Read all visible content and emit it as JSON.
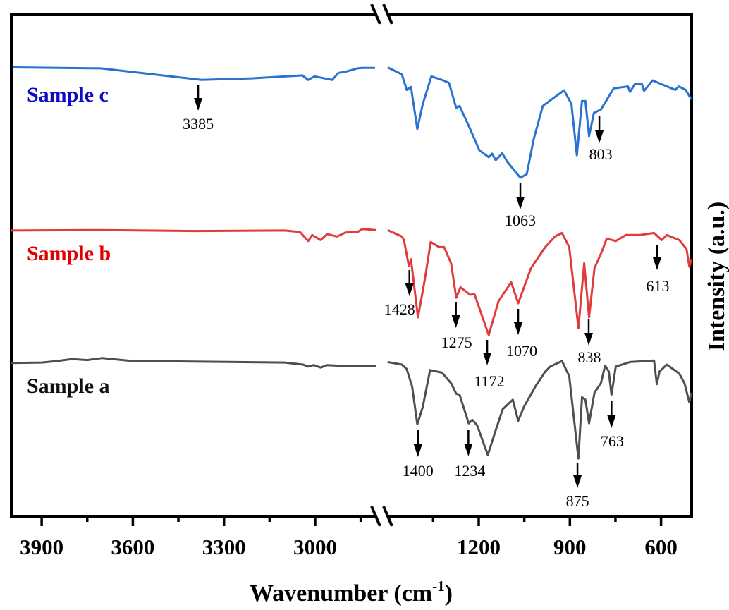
{
  "chart_data": {
    "type": "line",
    "title": "",
    "xlabel": "Wavenumber (cm",
    "xlabel_sup": "-1",
    "xlabel_close": ")",
    "ylabel": "Intensity (a.u.)",
    "x_axis": {
      "broken": true,
      "segments": [
        [
          4000,
          2800
        ],
        [
          1500,
          500
        ]
      ],
      "reversed": true,
      "ticks": [
        3900,
        3600,
        3300,
        3000,
        1200,
        900,
        600
      ],
      "tick_labels": [
        "3900",
        "3600",
        "3300",
        "3000",
        "1200",
        "900",
        "600"
      ],
      "minor_ticks": [
        3750,
        3450,
        3150,
        2850,
        1350,
        1050,
        750
      ]
    },
    "y_axis": {
      "ticks": "none",
      "ylim": [
        0,
        100
      ]
    },
    "grid": false,
    "series": [
      {
        "name": "Sample c",
        "color": "#2a72cf",
        "label_color": "#0b0bc8",
        "left": [
          [
            3995,
            89.4
          ],
          [
            3705,
            89.2
          ],
          [
            3374,
            86.9
          ],
          [
            3209,
            87.2
          ],
          [
            3042,
            87.8
          ],
          [
            3023,
            86.9
          ],
          [
            3002,
            87.6
          ],
          [
            2944,
            86.9
          ],
          [
            2923,
            88.3
          ],
          [
            2902,
            88.5
          ],
          [
            2861,
            89.2
          ],
          [
            2845,
            89.3
          ],
          [
            2803,
            89.3
          ]
        ],
        "right": [
          [
            1500,
            89.4
          ],
          [
            1453,
            88.0
          ],
          [
            1437,
            84.9
          ],
          [
            1423,
            85.5
          ],
          [
            1402,
            77.1
          ],
          [
            1384,
            82.1
          ],
          [
            1356,
            87.6
          ],
          [
            1321,
            86.9
          ],
          [
            1298,
            86.3
          ],
          [
            1274,
            81.3
          ],
          [
            1263,
            81.7
          ],
          [
            1228,
            77.1
          ],
          [
            1198,
            72.9
          ],
          [
            1167,
            71.5
          ],
          [
            1156,
            72.2
          ],
          [
            1144,
            70.9
          ],
          [
            1123,
            72.3
          ],
          [
            1105,
            70.5
          ],
          [
            1063,
            67.4
          ],
          [
            1042,
            68.1
          ],
          [
            1019,
            75.1
          ],
          [
            989,
            81.7
          ],
          [
            958,
            83.1
          ],
          [
            919,
            84.8
          ],
          [
            895,
            82.1
          ],
          [
            877,
            71.9
          ],
          [
            860,
            82.7
          ],
          [
            849,
            82.7
          ],
          [
            837,
            75.7
          ],
          [
            821,
            80.3
          ],
          [
            798,
            81.0
          ],
          [
            756,
            85.2
          ],
          [
            709,
            85.6
          ],
          [
            702,
            84.5
          ],
          [
            686,
            86.1
          ],
          [
            663,
            86.1
          ],
          [
            656,
            84.7
          ],
          [
            628,
            86.8
          ],
          [
            593,
            85.9
          ],
          [
            553,
            84.9
          ],
          [
            542,
            85.6
          ],
          [
            519,
            84.9
          ],
          [
            500,
            83.0
          ]
        ]
      },
      {
        "name": "Sample b",
        "color": "#e23b3b",
        "label_color": "#e00000",
        "left": [
          [
            4000,
            56.9
          ],
          [
            3700,
            57.0
          ],
          [
            3400,
            56.8
          ],
          [
            3100,
            56.9
          ],
          [
            3050,
            56.6
          ],
          [
            3023,
            54.8
          ],
          [
            3010,
            56.0
          ],
          [
            2982,
            55.0
          ],
          [
            2960,
            56.2
          ],
          [
            2928,
            55.7
          ],
          [
            2900,
            56.5
          ],
          [
            2860,
            56.6
          ],
          [
            2845,
            57.2
          ],
          [
            2800,
            57.0
          ]
        ],
        "right": [
          [
            1500,
            57.0
          ],
          [
            1453,
            55.7
          ],
          [
            1446,
            55.0
          ],
          [
            1430,
            49.8
          ],
          [
            1423,
            51.2
          ],
          [
            1400,
            39.6
          ],
          [
            1379,
            46.6
          ],
          [
            1358,
            54.6
          ],
          [
            1330,
            53.6
          ],
          [
            1314,
            53.6
          ],
          [
            1291,
            50.4
          ],
          [
            1274,
            43.5
          ],
          [
            1260,
            45.6
          ],
          [
            1228,
            44.1
          ],
          [
            1214,
            44.2
          ],
          [
            1167,
            36.1
          ],
          [
            1135,
            42.8
          ],
          [
            1093,
            46.6
          ],
          [
            1070,
            42.4
          ],
          [
            1028,
            49.4
          ],
          [
            981,
            53.6
          ],
          [
            949,
            55.7
          ],
          [
            926,
            56.4
          ],
          [
            902,
            53.6
          ],
          [
            872,
            37.5
          ],
          [
            853,
            50.4
          ],
          [
            837,
            39.6
          ],
          [
            819,
            49.4
          ],
          [
            795,
            52.7
          ],
          [
            779,
            55.3
          ],
          [
            749,
            54.8
          ],
          [
            716,
            56.0
          ],
          [
            670,
            56.0
          ],
          [
            623,
            56.4
          ],
          [
            598,
            55.0
          ],
          [
            581,
            56.0
          ],
          [
            540,
            55.0
          ],
          [
            516,
            53.2
          ],
          [
            507,
            49.7
          ],
          [
            500,
            51.2
          ]
        ]
      },
      {
        "name": "Sample a",
        "color": "#4f4f4f",
        "label_color": "#111111",
        "left": [
          [
            4000,
            30.5
          ],
          [
            3900,
            30.6
          ],
          [
            3850,
            30.9
          ],
          [
            3800,
            31.3
          ],
          [
            3750,
            31.1
          ],
          [
            3700,
            31.5
          ],
          [
            3650,
            31.2
          ],
          [
            3600,
            30.9
          ],
          [
            3400,
            30.8
          ],
          [
            3100,
            30.6
          ],
          [
            3040,
            30.2
          ],
          [
            3023,
            29.8
          ],
          [
            3005,
            30.1
          ],
          [
            2982,
            29.6
          ],
          [
            2960,
            30.1
          ],
          [
            2900,
            29.9
          ],
          [
            2800,
            29.9
          ]
        ],
        "right": [
          [
            1500,
            30.7
          ],
          [
            1453,
            30.2
          ],
          [
            1437,
            29.3
          ],
          [
            1419,
            25.8
          ],
          [
            1402,
            18.3
          ],
          [
            1384,
            21.8
          ],
          [
            1360,
            29.1
          ],
          [
            1321,
            28.6
          ],
          [
            1291,
            26.5
          ],
          [
            1274,
            24.4
          ],
          [
            1263,
            24.2
          ],
          [
            1233,
            18.5
          ],
          [
            1221,
            19.2
          ],
          [
            1205,
            18.1
          ],
          [
            1170,
            12.2
          ],
          [
            1144,
            17.1
          ],
          [
            1121,
            21.3
          ],
          [
            1088,
            23.2
          ],
          [
            1070,
            19.0
          ],
          [
            1051,
            21.8
          ],
          [
            1012,
            26.0
          ],
          [
            981,
            28.8
          ],
          [
            965,
            29.8
          ],
          [
            926,
            30.9
          ],
          [
            902,
            27.9
          ],
          [
            872,
            11.5
          ],
          [
            860,
            23.7
          ],
          [
            849,
            23.2
          ],
          [
            837,
            18.5
          ],
          [
            819,
            24.6
          ],
          [
            798,
            26.5
          ],
          [
            784,
            30.0
          ],
          [
            772,
            28.8
          ],
          [
            763,
            24.2
          ],
          [
            749,
            29.8
          ],
          [
            702,
            30.7
          ],
          [
            623,
            31.0
          ],
          [
            614,
            26.3
          ],
          [
            605,
            28.8
          ],
          [
            581,
            30.2
          ],
          [
            540,
            28.4
          ],
          [
            523,
            26.5
          ],
          [
            507,
            22.7
          ],
          [
            500,
            24.6
          ]
        ]
      }
    ],
    "annotations": [
      {
        "label": "3385",
        "series": "Sample c"
      },
      {
        "label": "1063",
        "series": "Sample c"
      },
      {
        "label": "803",
        "series": "Sample c"
      },
      {
        "label": "1428",
        "series": "Sample b"
      },
      {
        "label": "1275",
        "series": "Sample b"
      },
      {
        "label": "1172",
        "series": "Sample b"
      },
      {
        "label": "1070",
        "series": "Sample b"
      },
      {
        "label": "838",
        "series": "Sample b"
      },
      {
        "label": "613",
        "series": "Sample b"
      },
      {
        "label": "1400",
        "series": "Sample a"
      },
      {
        "label": "1234",
        "series": "Sample a"
      },
      {
        "label": "875",
        "series": "Sample a"
      },
      {
        "label": "763",
        "series": "Sample a"
      }
    ]
  }
}
